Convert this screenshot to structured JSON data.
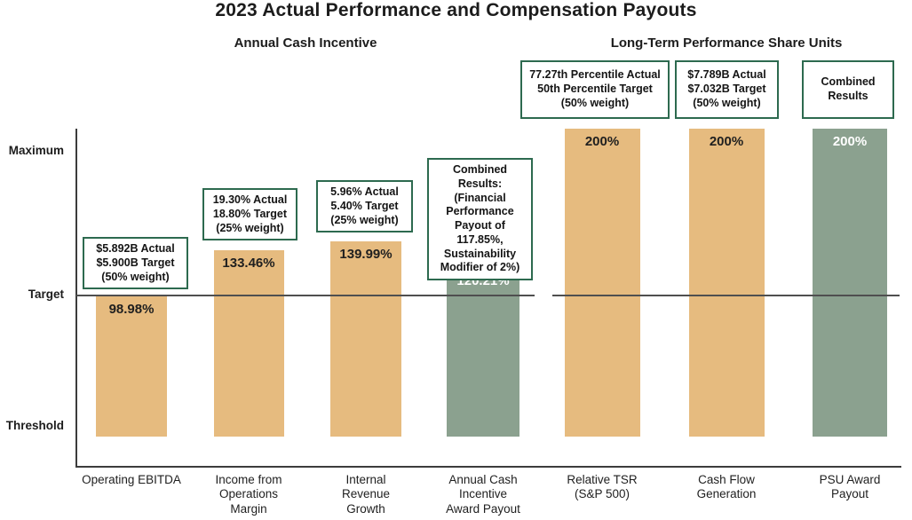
{
  "chart_data": {
    "type": "bar",
    "title": "2023 Actual Performance and Compensation Payouts",
    "y_axis_labels": [
      "Maximum",
      "Target",
      "Threshold"
    ],
    "axis": {
      "target_value": 100,
      "max_value": 200,
      "grid": "off",
      "target_line": true
    },
    "colors": {
      "tan": "#e6bb7f",
      "green": "#8ba18f",
      "box_border": "#2d6a4f",
      "line": "#4f4f4f"
    },
    "sections": [
      {
        "label": "Annual Cash Incentive",
        "bars": [
          {
            "category_lines": [
              "Operating EBITDA"
            ],
            "value": 98.98,
            "value_label": "98.98%",
            "color": "tan",
            "annotation_lines": [
              "$5.892B Actual",
              "$5.900B Target",
              "(50% weight)"
            ]
          },
          {
            "category_lines": [
              "Income from",
              "Operations",
              "Margin"
            ],
            "value": 133.46,
            "value_label": "133.46%",
            "color": "tan",
            "annotation_lines": [
              "19.30% Actual",
              "18.80% Target",
              "(25% weight)"
            ]
          },
          {
            "category_lines": [
              "Internal",
              "Revenue",
              "Growth"
            ],
            "value": 139.99,
            "value_label": "139.99%",
            "color": "tan",
            "annotation_lines": [
              "5.96% Actual",
              "5.40% Target",
              "(25% weight)"
            ]
          },
          {
            "category_lines": [
              "Annual Cash",
              "Incentive",
              "Award Payout"
            ],
            "value": 120.21,
            "value_label": "120.21%",
            "color": "green",
            "annotation_lines": [
              "Combined Results:",
              "(Financial",
              "Performance",
              "Payout of 117.85%,",
              "Sustainability",
              "Modifier of 2%)"
            ]
          }
        ]
      },
      {
        "label": "Long-Term Performance Share Units",
        "bars": [
          {
            "category_lines": [
              "Relative TSR",
              "(S&P 500)"
            ],
            "value": 200,
            "value_label": "200%",
            "color": "tan",
            "annotation_lines": [
              "77.27th Percentile Actual",
              "50th Percentile Target",
              "(50% weight)"
            ]
          },
          {
            "category_lines": [
              "Cash Flow",
              "Generation"
            ],
            "value": 200,
            "value_label": "200%",
            "color": "tan",
            "annotation_lines": [
              "$7.789B Actual",
              "$7.032B Target",
              "(50% weight)"
            ]
          },
          {
            "category_lines": [
              "PSU Award",
              "Payout"
            ],
            "value": 200,
            "value_label": "200%",
            "color": "green",
            "annotation_lines": [
              "Combined",
              "Results"
            ]
          }
        ]
      }
    ]
  }
}
